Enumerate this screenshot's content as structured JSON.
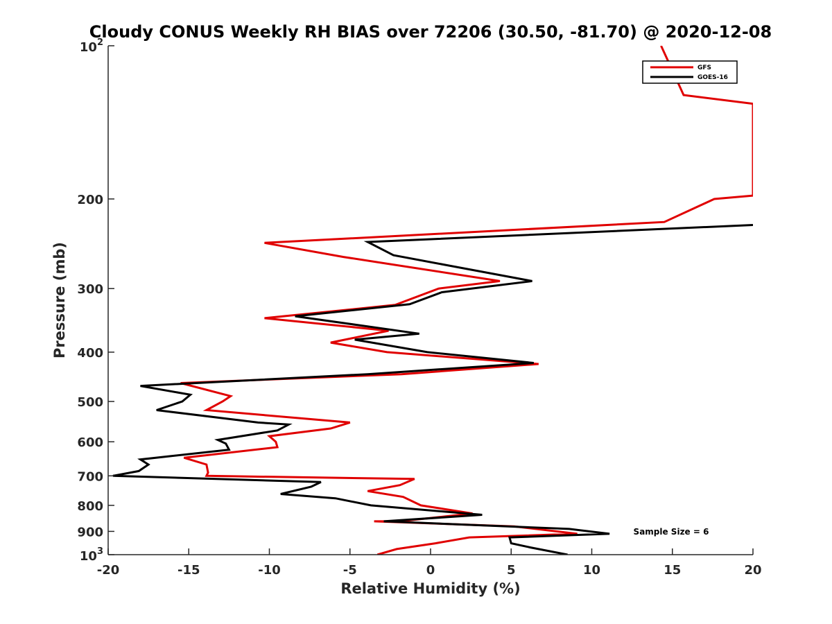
{
  "chart_data": {
    "type": "line",
    "title": "Cloudy CONUS Weekly RH BIAS over 72206 (30.50, -81.70) @ 2020-12-08",
    "xlabel": "Relative Humidity (%)",
    "ylabel": "Pressure (mb)",
    "xlim": [
      -20,
      20
    ],
    "ylim": [
      100,
      1000
    ],
    "yscale": "log",
    "y_reversed": true,
    "xticks": [
      -20,
      -15,
      -10,
      -5,
      0,
      5,
      10,
      15,
      20
    ],
    "xtick_labels": [
      "-20",
      "-15",
      "-10",
      "-5",
      "0",
      "5",
      "10",
      "15",
      "20"
    ],
    "yticks": [
      200,
      300,
      400,
      500,
      600,
      700,
      800,
      900
    ],
    "ytick_labels": [
      "200",
      "300",
      "400",
      "500",
      "600",
      "700",
      "800",
      "900"
    ],
    "ytick_top": {
      "base": "10",
      "exp": "2"
    },
    "ytick_bottom": {
      "base": "10",
      "exp": "3"
    },
    "legend_position": "top-right",
    "grid": false,
    "series": [
      {
        "name": "GFS",
        "color": "#e00000",
        "points": [
          [
            14.3,
            100
          ],
          [
            15.7,
            125
          ],
          [
            20.0,
            130
          ],
          [
            20.0,
            197
          ],
          [
            17.6,
            200
          ],
          [
            14.5,
            222
          ],
          [
            -10.3,
            244
          ],
          [
            -5.4,
            260
          ],
          [
            4.3,
            290
          ],
          [
            0.5,
            300
          ],
          [
            -2.2,
            323
          ],
          [
            -10.3,
            343
          ],
          [
            -2.6,
            363
          ],
          [
            -6.2,
            383
          ],
          [
            -2.7,
            400
          ],
          [
            6.7,
            422
          ],
          [
            -1.8,
            442
          ],
          [
            -15.5,
            460
          ],
          [
            -12.4,
            488
          ],
          [
            -12.9,
            500
          ],
          [
            -13.9,
            520
          ],
          [
            -5.0,
            550
          ],
          [
            -6.2,
            565
          ],
          [
            -10.0,
            585
          ],
          [
            -9.6,
            600
          ],
          [
            -9.5,
            615
          ],
          [
            -15.3,
            645
          ],
          [
            -13.9,
            665
          ],
          [
            -13.8,
            690
          ],
          [
            -13.9,
            700
          ],
          [
            -1.0,
            710
          ],
          [
            -1.9,
            730
          ],
          [
            -3.9,
            750
          ],
          [
            -1.7,
            770
          ],
          [
            -0.6,
            800
          ],
          [
            2.6,
            830
          ],
          [
            -1.9,
            860
          ],
          [
            -3.5,
            860
          ],
          [
            5.2,
            880
          ],
          [
            9.1,
            910
          ],
          [
            2.4,
            925
          ],
          [
            0.3,
            950
          ],
          [
            -2.1,
            975
          ],
          [
            -3.3,
            1000
          ]
        ]
      },
      {
        "name": "GOES-16",
        "color": "#000000",
        "points": [
          [
            20.0,
            225
          ],
          [
            -3.9,
            243
          ],
          [
            -2.3,
            258
          ],
          [
            6.3,
            290
          ],
          [
            0.7,
            305
          ],
          [
            -1.3,
            322
          ],
          [
            -8.4,
            340
          ],
          [
            -0.7,
            368
          ],
          [
            -4.7,
            378
          ],
          [
            -0.2,
            400
          ],
          [
            6.4,
            420
          ],
          [
            -3.9,
            442
          ],
          [
            -18.0,
            466
          ],
          [
            -14.9,
            485
          ],
          [
            -15.4,
            500
          ],
          [
            -17.0,
            520
          ],
          [
            -10.7,
            550
          ],
          [
            -8.8,
            555
          ],
          [
            -9.5,
            570
          ],
          [
            -13.2,
            595
          ],
          [
            -12.7,
            605
          ],
          [
            -12.5,
            622
          ],
          [
            -18.0,
            650
          ],
          [
            -17.5,
            665
          ],
          [
            -18.1,
            685
          ],
          [
            -19.7,
            700
          ],
          [
            -6.8,
            720
          ],
          [
            -7.4,
            735
          ],
          [
            -9.3,
            760
          ],
          [
            -5.9,
            775
          ],
          [
            -3.7,
            800
          ],
          [
            3.2,
            835
          ],
          [
            -2.9,
            860
          ],
          [
            8.6,
            890
          ],
          [
            11.1,
            910
          ],
          [
            4.9,
            925
          ],
          [
            5.0,
            950
          ],
          [
            6.2,
            968
          ],
          [
            8.5,
            1000
          ]
        ]
      }
    ],
    "annotation": "Sample Size = 6"
  }
}
